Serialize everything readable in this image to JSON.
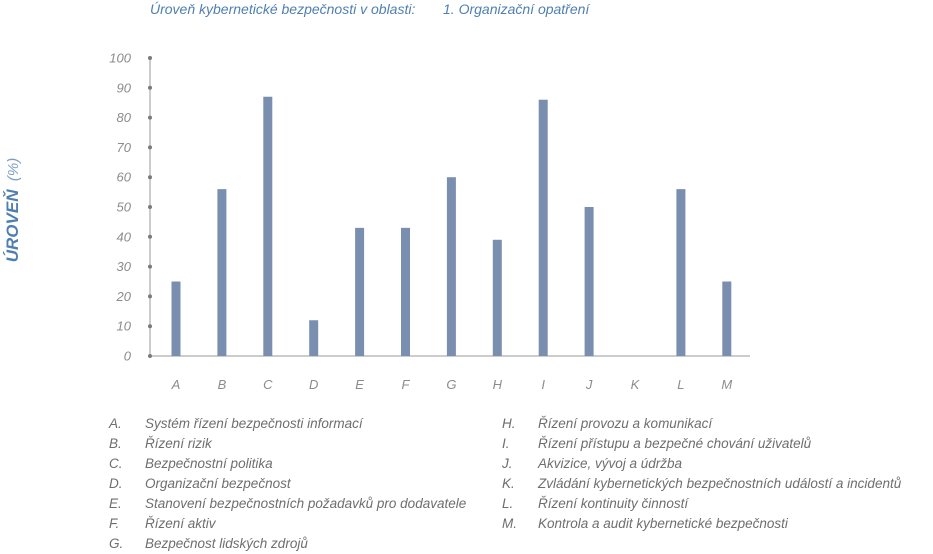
{
  "chart_data": {
    "type": "bar",
    "title": "Úroveň kybernetické bezpečnosti v oblasti:",
    "subtitle": "1. Organizační opatření",
    "ylabel": "ÚROVEŇ",
    "ylabel_unit": "(%)",
    "xlabel": "",
    "ylim": [
      0,
      100
    ],
    "yticks": [
      "0",
      "10",
      "20",
      "30",
      "40",
      "50",
      "60",
      "70",
      "80",
      "90",
      "100"
    ],
    "categories": [
      "A",
      "B",
      "C",
      "D",
      "E",
      "F",
      "G",
      "H",
      "I",
      "J",
      "K",
      "L",
      "M"
    ],
    "values": [
      25,
      56,
      87,
      12,
      43,
      43,
      60,
      39,
      86,
      50,
      0,
      56,
      25
    ],
    "bar_color": "#7a8faf",
    "grid": false,
    "legend_items": [
      {
        "letter": "A.",
        "label": "Systém řízení bezpečnosti informací"
      },
      {
        "letter": "B.",
        "label": "Řízení rizik"
      },
      {
        "letter": "C.",
        "label": "Bezpečnostní politika"
      },
      {
        "letter": "D.",
        "label": "Organizační bezpečnost"
      },
      {
        "letter": "E.",
        "label": "Stanovení bezpečnostních požadavků pro dodavatele"
      },
      {
        "letter": "F.",
        "label": "Řízení aktiv"
      },
      {
        "letter": "G.",
        "label": "Bezpečnost lidských zdrojů"
      },
      {
        "letter": "H.",
        "label": "Řízení provozu a komunikací"
      },
      {
        "letter": "I.",
        "label": "Řízení přístupu a bezpečné chování uživatelů"
      },
      {
        "letter": "J.",
        "label": "Akvizice, vývoj a údržba"
      },
      {
        "letter": "K.",
        "label": "Zvládání kybernetických bezpečnostních událostí a incidentů"
      },
      {
        "letter": "L.",
        "label": "Řízení kontinuity činností"
      },
      {
        "letter": "M.",
        "label": "Kontrola a audit kybernetické bezpečnosti"
      }
    ]
  }
}
